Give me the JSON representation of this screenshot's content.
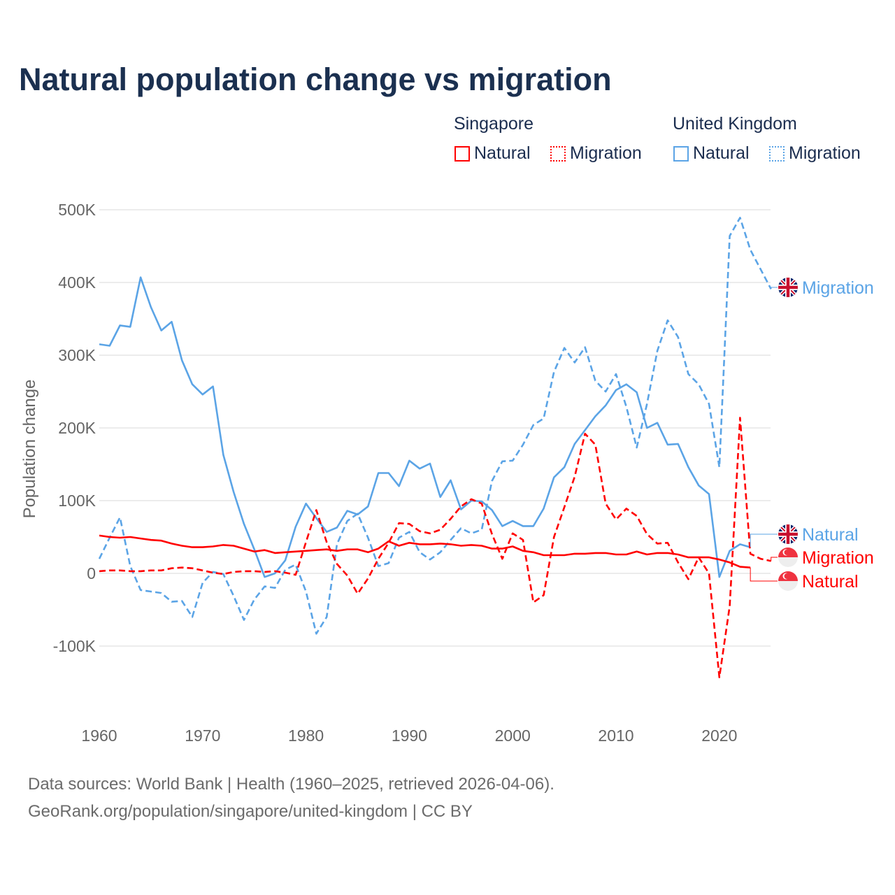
{
  "chart_data": {
    "type": "line",
    "title": "Natural population change vs migration",
    "xlabel": "",
    "ylabel": "Population change",
    "xlim": [
      1960,
      2025
    ],
    "ylim": [
      -150000,
      500000
    ],
    "y_ticks": [
      {
        "v": 500,
        "label": "500K"
      },
      {
        "v": 400,
        "label": "400K"
      },
      {
        "v": 300,
        "label": "300K"
      },
      {
        "v": 200,
        "label": "200K"
      },
      {
        "v": 100,
        "label": "100K"
      },
      {
        "v": 0,
        "label": "0"
      },
      {
        "v": -100,
        "label": "-100K"
      }
    ],
    "x_ticks": [
      {
        "v": 1960,
        "label": "1960"
      },
      {
        "v": 1970,
        "label": "1970"
      },
      {
        "v": 1980,
        "label": "1980"
      },
      {
        "v": 1990,
        "label": "1990"
      },
      {
        "v": 2000,
        "label": "2000"
      },
      {
        "v": 2010,
        "label": "2010"
      },
      {
        "v": 2020,
        "label": "2020"
      }
    ],
    "units": "thousands",
    "grid": true,
    "legend_placement": "top-right",
    "legend": {
      "groups": [
        {
          "country": "Singapore",
          "items": [
            {
              "label": "Natural",
              "style": "solid"
            },
            {
              "label": "Migration",
              "style": "dotted"
            }
          ]
        },
        {
          "country": "United Kingdom",
          "items": [
            {
              "label": "Natural",
              "style": "solid"
            },
            {
              "label": "Migration",
              "style": "dotted"
            }
          ]
        }
      ]
    },
    "series": [
      {
        "name": "United Kingdom Natural",
        "label": "Natural",
        "country": "United Kingdom",
        "color": "#5ba4e6",
        "dash": false,
        "start": 1960,
        "values": [
          315,
          313,
          341,
          339,
          407,
          366,
          334,
          346,
          293,
          260,
          246,
          257,
          163,
          112,
          68,
          33,
          -5,
          0,
          18,
          64,
          96,
          76,
          57,
          63,
          86,
          81,
          92,
          138,
          138,
          120,
          155,
          144,
          151,
          105,
          128,
          88,
          100,
          99,
          87,
          65,
          72,
          65,
          65,
          89,
          132,
          146,
          178,
          197,
          216,
          231,
          252,
          260,
          249,
          200,
          207,
          177,
          178,
          146,
          121,
          109,
          -5,
          31,
          40,
          36
        ]
      },
      {
        "name": "United Kingdom Migration",
        "label": "Migration",
        "country": "United Kingdom",
        "color": "#5ba4e6",
        "dash": true,
        "start": 1960,
        "values": [
          20,
          49,
          77,
          10,
          -23,
          -25,
          -27,
          -39,
          -38,
          -60,
          -13,
          2,
          -1,
          -31,
          -64,
          -36,
          -18,
          -20,
          5,
          12,
          -25,
          -83,
          -60,
          40,
          72,
          82,
          49,
          10,
          14,
          49,
          57,
          29,
          19,
          29,
          46,
          62,
          55,
          60,
          127,
          154,
          155,
          177,
          204,
          213,
          277,
          310,
          290,
          311,
          265,
          250,
          274,
          229,
          173,
          233,
          306,
          348,
          325,
          274,
          260,
          233,
          146,
          464,
          489,
          445,
          418,
          391
        ]
      },
      {
        "name": "Singapore Migration",
        "label": "Migration",
        "country": "Singapore",
        "color": "#ff0000",
        "dash": true,
        "start": 1960,
        "values": [
          3,
          4,
          4,
          3,
          3,
          4,
          4,
          7,
          8,
          7,
          4,
          1,
          -1,
          2,
          3,
          3,
          2,
          3,
          1,
          -2,
          43,
          87,
          43,
          13,
          -3,
          -28,
          -7,
          20,
          42,
          69,
          68,
          58,
          55,
          60,
          75,
          92,
          102,
          96,
          54,
          20,
          55,
          46,
          -40,
          -30,
          50,
          91,
          133,
          192,
          177,
          96,
          74,
          89,
          79,
          54,
          41,
          42,
          15,
          -8,
          22,
          0,
          -143,
          -45,
          214,
          27,
          20,
          17
        ]
      },
      {
        "name": "Singapore Natural",
        "label": "Natural",
        "country": "Singapore",
        "color": "#ff0000",
        "dash": false,
        "start": 1960,
        "values": [
          52,
          50,
          49,
          50,
          48,
          46,
          45,
          41,
          38,
          36,
          36,
          37,
          39,
          38,
          34,
          30,
          32,
          28,
          29,
          30,
          31,
          32,
          33,
          31,
          33,
          33,
          29,
          34,
          44,
          38,
          42,
          40,
          40,
          41,
          40,
          38,
          39,
          38,
          34,
          34,
          37,
          31,
          29,
          25,
          25,
          25,
          27,
          27,
          28,
          28,
          26,
          26,
          30,
          26,
          28,
          28,
          26,
          22,
          22,
          22,
          19,
          15,
          9,
          8
        ]
      }
    ]
  },
  "footer": {
    "line1": "Data sources: World Bank | Health (1960–2025, retrieved 2026-04-06).",
    "line2": "GeoRank.org/population/singapore/united-kingdom | CC BY"
  }
}
